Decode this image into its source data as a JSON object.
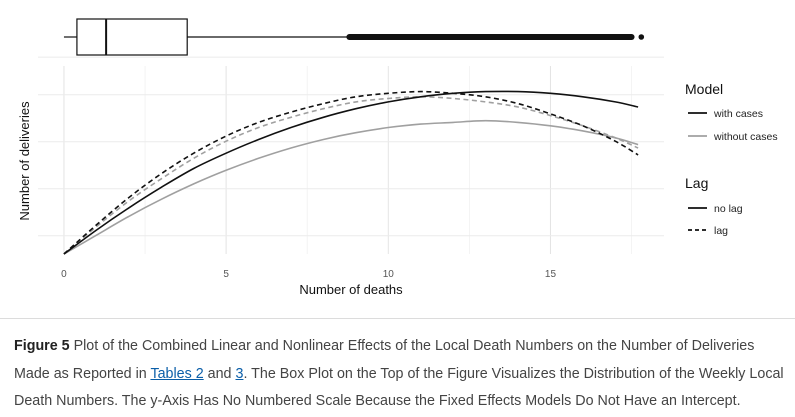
{
  "chart_data": {
    "type": "line",
    "xlabel": "Number of deaths",
    "ylabel": "Number of deliveries",
    "xlim": [
      -0.8,
      18.5
    ],
    "x_ticks": [
      0,
      5,
      10,
      15
    ],
    "ylim": [
      0,
      1.1
    ],
    "y_numbered": false,
    "grid": true,
    "x": [
      0,
      1,
      2,
      3,
      4,
      5,
      6,
      7,
      8,
      9,
      10,
      11,
      12,
      13,
      14,
      15,
      16,
      17,
      17.7
    ],
    "series": [
      {
        "model": "with cases",
        "lag": "no lag",
        "color": "#111111",
        "dash": "solid",
        "values": [
          0,
          0.14,
          0.27,
          0.39,
          0.5,
          0.59,
          0.67,
          0.74,
          0.8,
          0.85,
          0.89,
          0.92,
          0.94,
          0.95,
          0.95,
          0.94,
          0.92,
          0.89,
          0.86
        ]
      },
      {
        "model": "with cases",
        "lag": "lag",
        "color": "#111111",
        "dash": "dashed",
        "values": [
          0,
          0.17,
          0.33,
          0.47,
          0.59,
          0.69,
          0.77,
          0.83,
          0.88,
          0.92,
          0.94,
          0.95,
          0.94,
          0.92,
          0.88,
          0.82,
          0.75,
          0.66,
          0.58
        ]
      },
      {
        "model": "without cases",
        "lag": "no lag",
        "color": "#a0a0a0",
        "dash": "solid",
        "values": [
          0,
          0.11,
          0.22,
          0.32,
          0.41,
          0.49,
          0.56,
          0.62,
          0.67,
          0.71,
          0.74,
          0.76,
          0.77,
          0.78,
          0.77,
          0.75,
          0.72,
          0.68,
          0.64
        ]
      },
      {
        "model": "without cases",
        "lag": "lag",
        "color": "#a0a0a0",
        "dash": "dashed",
        "values": [
          0,
          0.16,
          0.31,
          0.44,
          0.56,
          0.66,
          0.74,
          0.8,
          0.85,
          0.89,
          0.91,
          0.92,
          0.91,
          0.89,
          0.86,
          0.81,
          0.75,
          0.68,
          0.62
        ]
      }
    ],
    "boxplot": {
      "variable": "Number of deaths",
      "q1": 0.4,
      "median": 1.3,
      "q3": 3.8,
      "whisker_low": 0,
      "whisker_high": 8.8,
      "outliers_from": 8.8,
      "outliers_to": 17.5,
      "outlier_max": 17.8
    },
    "legend": {
      "position": "right",
      "model": {
        "title": "Model",
        "items": [
          {
            "label": "with cases",
            "color": "#111111"
          },
          {
            "label": "without cases",
            "color": "#a0a0a0"
          }
        ]
      },
      "lag": {
        "title": "Lag",
        "items": [
          {
            "label": "no lag",
            "dash": "solid"
          },
          {
            "label": "lag",
            "dash": "dashed"
          }
        ]
      }
    }
  },
  "caption": {
    "label": "Figure 5",
    "text_1": " Plot of the Combined Linear and Nonlinear Effects of the Local Death Numbers on the Number of Deliveries Made as Reported in ",
    "link_1": "Tables 2",
    "text_2": " and ",
    "link_2": "3",
    "text_3": ". The Box Plot on the Top of the Figure Visualizes the Distribution of the Weekly Local Death Numbers. The y-Axis Has No Numbered Scale Because the Fixed Effects Models Do Not Have an Intercept."
  }
}
